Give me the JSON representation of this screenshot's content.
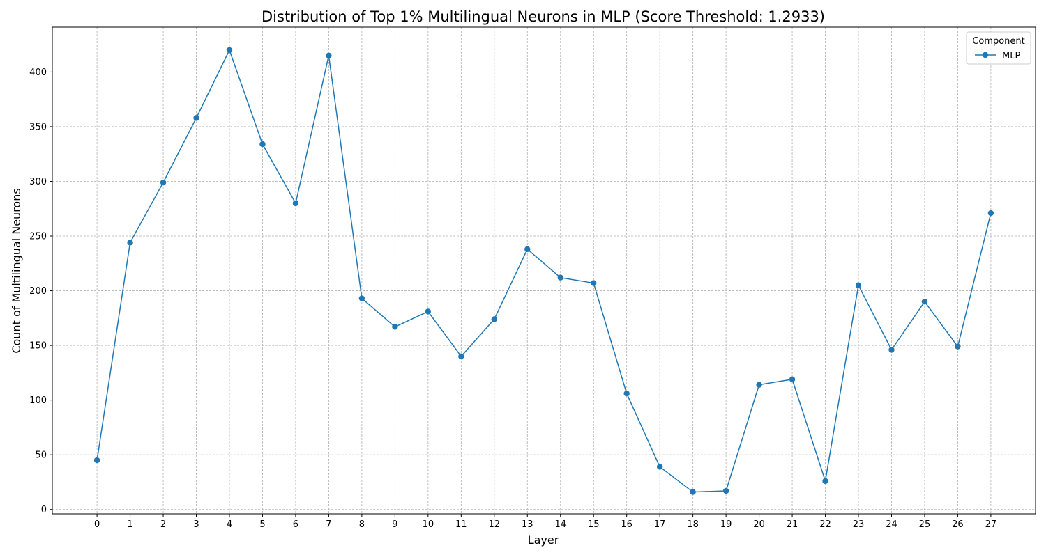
{
  "chart_data": {
    "type": "line",
    "title": "Distribution of Top 1% Multilingual Neurons in MLP (Score Threshold: 1.2933)",
    "xlabel": "Layer",
    "ylabel": "Count of Multilingual Neurons",
    "x": [
      0,
      1,
      2,
      3,
      4,
      5,
      6,
      7,
      8,
      9,
      10,
      11,
      12,
      13,
      14,
      15,
      16,
      17,
      18,
      19,
      20,
      21,
      22,
      23,
      24,
      25,
      26,
      27
    ],
    "x_tick_labels": [
      "0",
      "1",
      "2",
      "3",
      "4",
      "5",
      "6",
      "7",
      "8",
      "9",
      "10",
      "11",
      "12",
      "13",
      "14",
      "15",
      "16",
      "17",
      "18",
      "19",
      "20",
      "21",
      "22",
      "23",
      "24",
      "25",
      "26",
      "27"
    ],
    "y_ticks": [
      0,
      50,
      100,
      150,
      200,
      250,
      300,
      350,
      400
    ],
    "y_tick_labels": [
      "0",
      "50",
      "100",
      "150",
      "200",
      "250",
      "300",
      "350",
      "400"
    ],
    "xlim": [
      -1.35,
      28.35
    ],
    "ylim": [
      -4,
      441
    ],
    "grid": true,
    "legend": {
      "title": "Component",
      "placement": "top-right"
    },
    "series": [
      {
        "name": "MLP",
        "color": "#1f77b4",
        "marker": "circle",
        "values": [
          45,
          244,
          299,
          358,
          420,
          334,
          280,
          415,
          193,
          167,
          181,
          140,
          174,
          238,
          212,
          207,
          106,
          39,
          16,
          17,
          114,
          119,
          26,
          205,
          146,
          190,
          149,
          271
        ]
      }
    ]
  }
}
